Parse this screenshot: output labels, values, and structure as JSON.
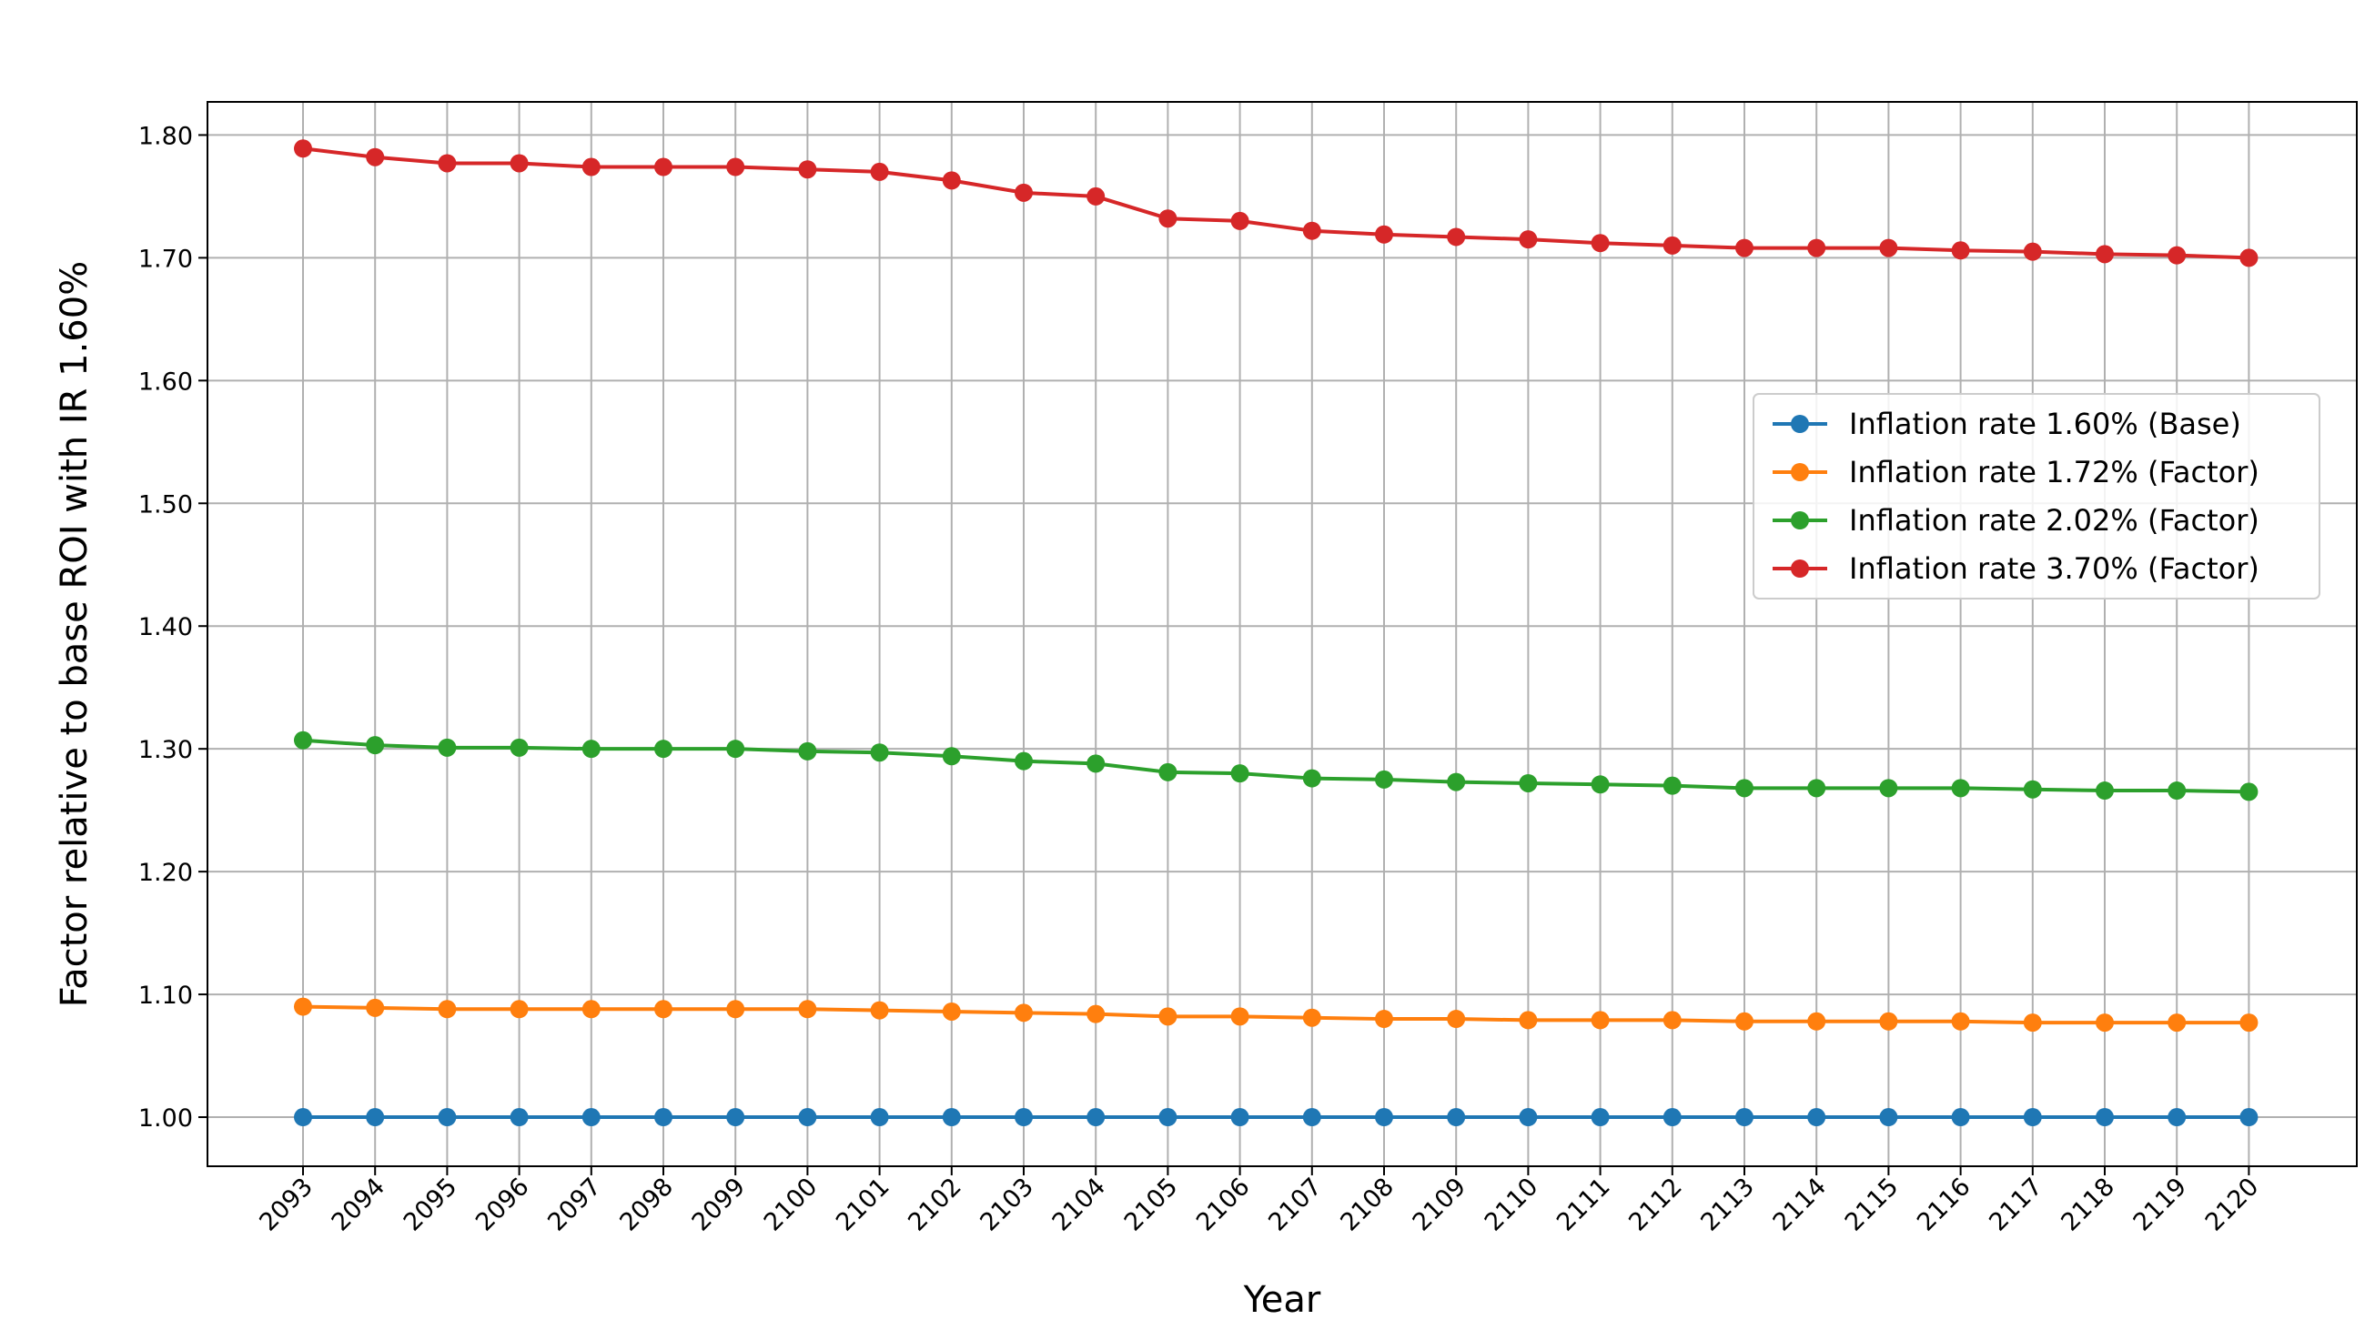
{
  "chart_data": {
    "type": "line",
    "title": "",
    "xlabel": "Year",
    "ylabel": "Factor relative to base ROI with IR 1.60%",
    "x": [
      "2093",
      "2094",
      "2095",
      "2096",
      "2097",
      "2098",
      "2099",
      "2100",
      "2101",
      "2102",
      "2103",
      "2104",
      "2105",
      "2106",
      "2107",
      "2108",
      "2109",
      "2110",
      "2111",
      "2112",
      "2113",
      "2114",
      "2115",
      "2116",
      "2117",
      "2118",
      "2119",
      "2120"
    ],
    "yticks": [
      "1.00",
      "1.10",
      "1.20",
      "1.30",
      "1.40",
      "1.50",
      "1.60",
      "1.70",
      "1.80"
    ],
    "ylim": [
      0.96,
      1.827
    ],
    "grid": true,
    "legend_position": "center-right",
    "series": [
      {
        "name": "Inflation rate 1.60% (Base)",
        "color": "#1f77b4",
        "values": [
          1.0,
          1.0,
          1.0,
          1.0,
          1.0,
          1.0,
          1.0,
          1.0,
          1.0,
          1.0,
          1.0,
          1.0,
          1.0,
          1.0,
          1.0,
          1.0,
          1.0,
          1.0,
          1.0,
          1.0,
          1.0,
          1.0,
          1.0,
          1.0,
          1.0,
          1.0,
          1.0,
          1.0
        ]
      },
      {
        "name": "Inflation rate 1.72% (Factor)",
        "color": "#ff7f0e",
        "values": [
          1.09,
          1.089,
          1.088,
          1.088,
          1.088,
          1.088,
          1.088,
          1.088,
          1.087,
          1.086,
          1.085,
          1.084,
          1.082,
          1.082,
          1.081,
          1.08,
          1.08,
          1.079,
          1.079,
          1.079,
          1.078,
          1.078,
          1.078,
          1.078,
          1.077,
          1.077,
          1.077,
          1.077
        ]
      },
      {
        "name": "Inflation rate 2.02% (Factor)",
        "color": "#2ca02c",
        "values": [
          1.307,
          1.303,
          1.301,
          1.301,
          1.3,
          1.3,
          1.3,
          1.298,
          1.297,
          1.294,
          1.29,
          1.288,
          1.281,
          1.28,
          1.276,
          1.275,
          1.273,
          1.272,
          1.271,
          1.27,
          1.268,
          1.268,
          1.268,
          1.268,
          1.267,
          1.266,
          1.266,
          1.265
        ]
      },
      {
        "name": "Inflation rate 3.70% (Factor)",
        "color": "#d62728",
        "values": [
          1.789,
          1.782,
          1.777,
          1.777,
          1.774,
          1.774,
          1.774,
          1.772,
          1.77,
          1.763,
          1.753,
          1.75,
          1.732,
          1.73,
          1.722,
          1.719,
          1.717,
          1.715,
          1.712,
          1.71,
          1.708,
          1.708,
          1.708,
          1.706,
          1.705,
          1.703,
          1.702,
          1.7
        ]
      }
    ]
  }
}
